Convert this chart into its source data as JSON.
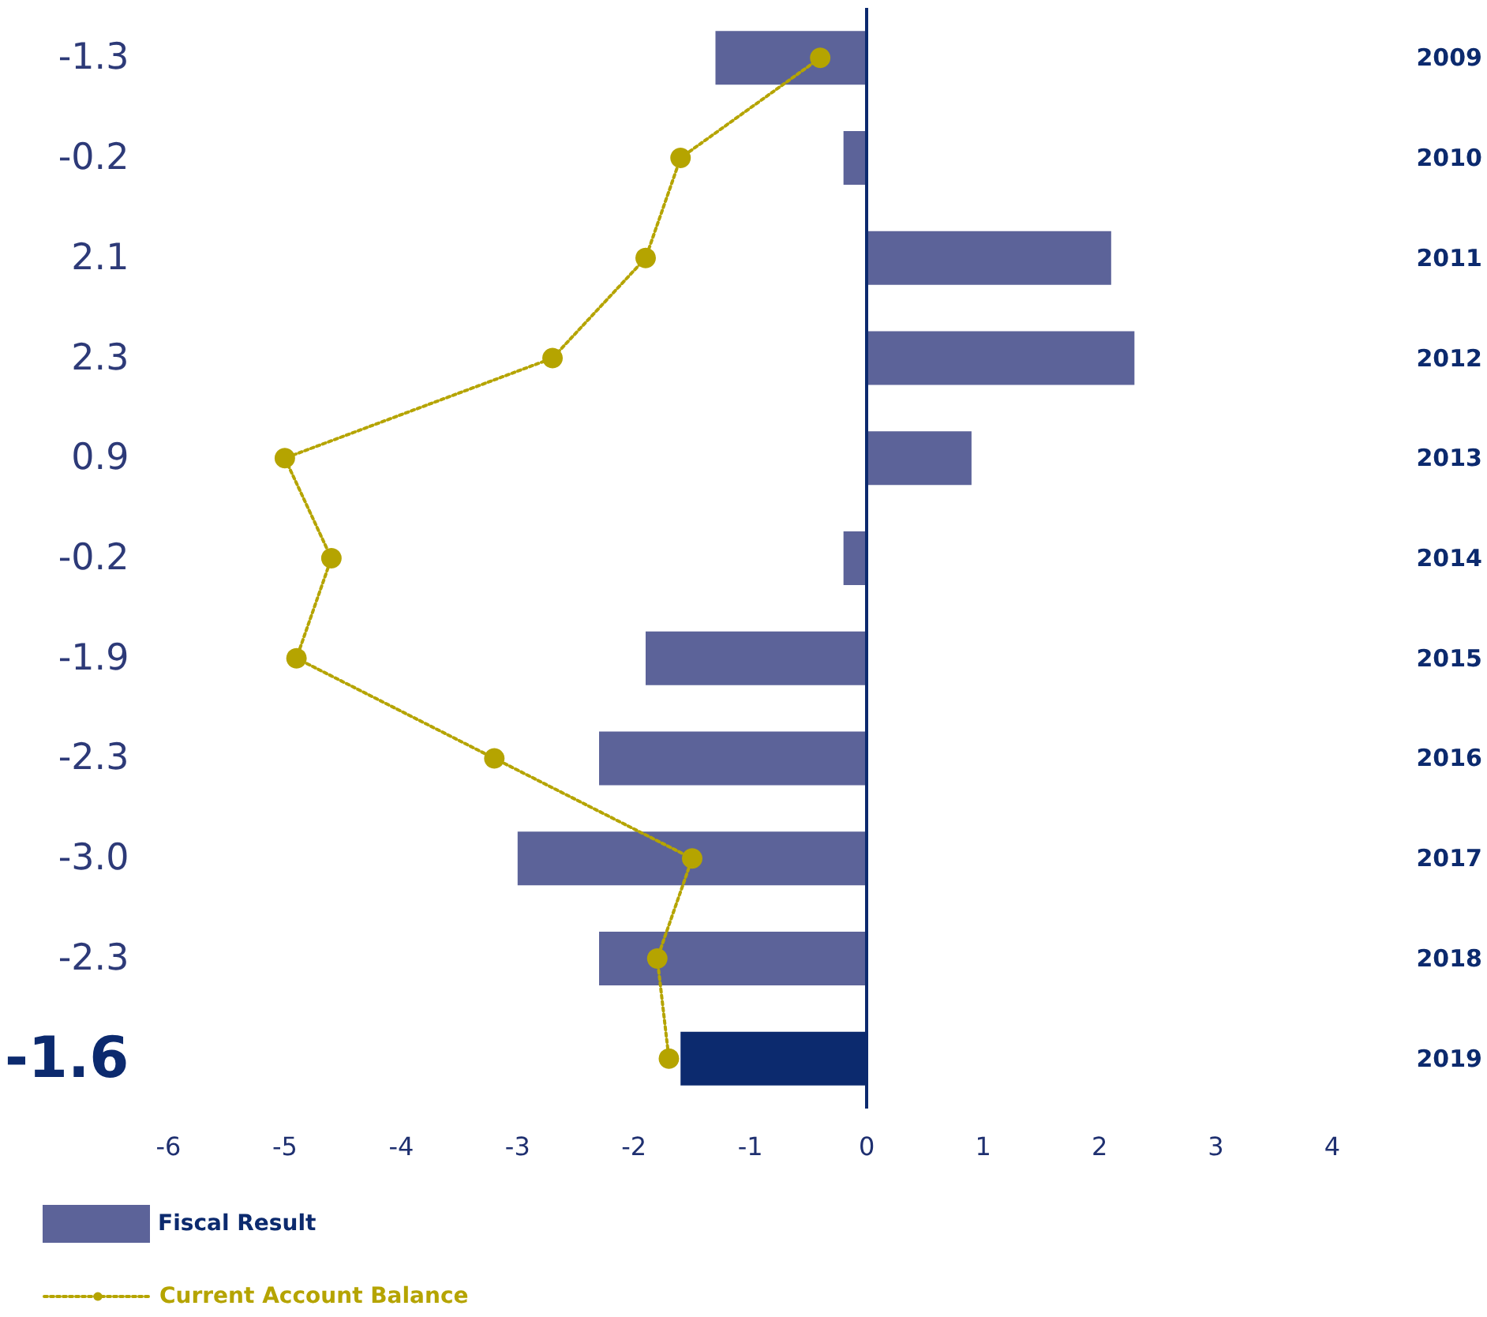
{
  "chart_data": {
    "type": "bar",
    "orientation": "horizontal",
    "categories": [
      "2009",
      "2010",
      "2011",
      "2012",
      "2013",
      "2014",
      "2015",
      "2016",
      "2017",
      "2018",
      "2019"
    ],
    "xlim": [
      -6,
      4
    ],
    "xticks": [
      -6,
      -5,
      -4,
      -3,
      -2,
      -1,
      0,
      1,
      2,
      3,
      4
    ],
    "legend": "bottom left",
    "marker": "circle",
    "line_style": "dotted",
    "ref_lines": [
      {
        "axis": "x",
        "value": 0,
        "color": "#0c2a6e"
      }
    ],
    "series": [
      {
        "name": "Fiscal Result",
        "colors": [
          "#5c6399",
          "#5c6399",
          "#5c6399",
          "#5c6399",
          "#5c6399",
          "#5c6399",
          "#5c6399",
          "#5c6399",
          "#5c6399",
          "#5c6399",
          "#0c2a6e"
        ],
        "values": [
          -1.3,
          -0.2,
          2.1,
          2.3,
          0.9,
          -0.2,
          -1.9,
          -2.3,
          -3.0,
          -2.3,
          -1.6
        ],
        "value_labels": [
          "-1.3",
          "-0.2",
          "2.1",
          "2.3",
          "0.9",
          "-0.2",
          "-1.9",
          "-2.3",
          "-3.0",
          "-2.3",
          "-1.6"
        ]
      },
      {
        "name": "Current Account Balance",
        "type": "line",
        "color": "#b5a400",
        "values": [
          -0.4,
          -1.6,
          -1.9,
          -2.7,
          -5.0,
          -4.6,
          -4.9,
          -3.2,
          -1.5,
          -1.8,
          -1.7
        ]
      }
    ]
  }
}
